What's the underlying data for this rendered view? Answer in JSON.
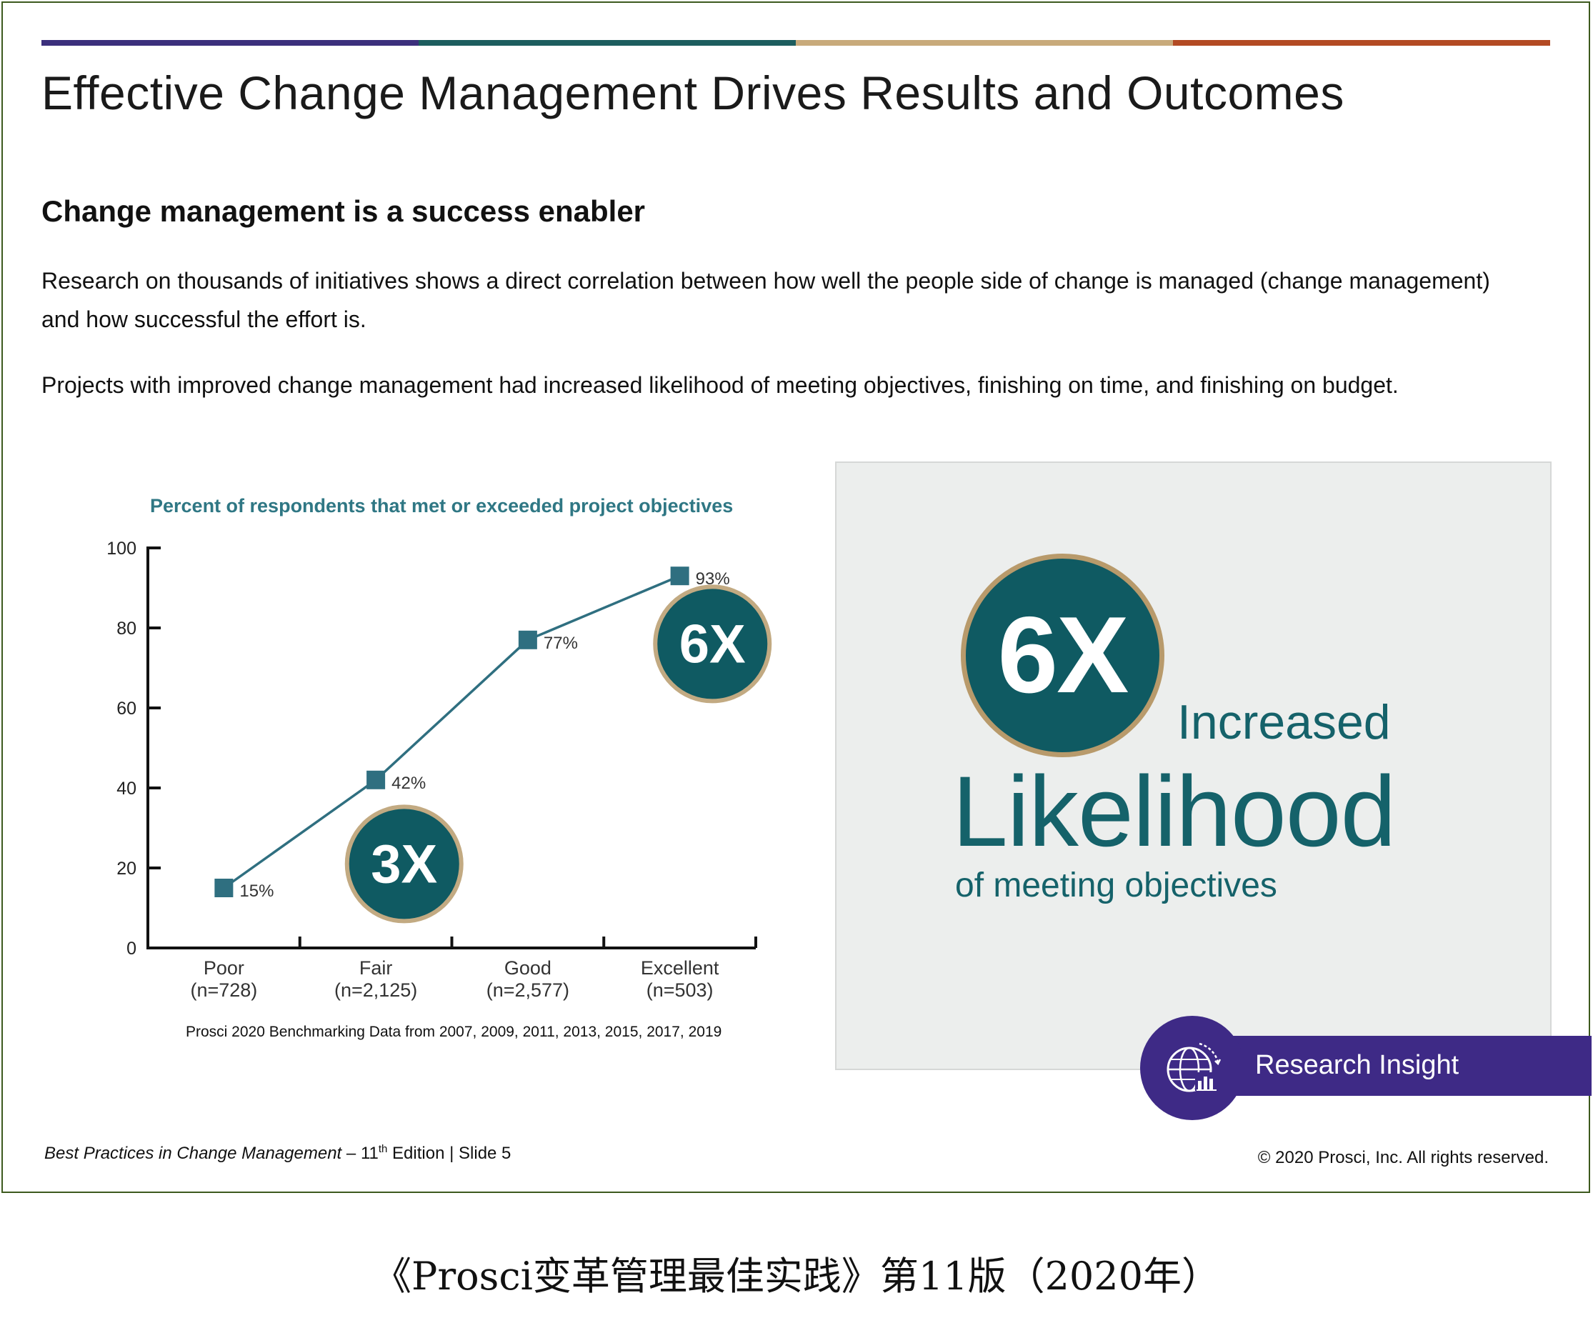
{
  "slide": {
    "title": "Effective Change Management Drives Results and Outcomes",
    "section_heading": "Change management is a success enabler",
    "paragraph1": "Research on thousands of initiatives shows a direct correlation between how well the people side of change is managed (change management) and how successful the effort is.",
    "paragraph2": "Projects with improved change management had increased likelihood of meeting objectives, finishing on time, and finishing on budget.",
    "top_bar_colors": [
      "#3b2f7c",
      "#1c5d5e",
      "#c8aa7b",
      "#b34a23"
    ]
  },
  "chart_data": {
    "type": "line",
    "title": "Percent of respondents that met or exceeded project objectives",
    "categories": [
      "Poor",
      "Fair",
      "Good",
      "Excellent"
    ],
    "category_counts": [
      "(n=728)",
      "(n=2,125)",
      "(n=2,577)",
      "(n=503)"
    ],
    "series": [
      {
        "values": [
          15,
          42,
          77,
          93
        ],
        "labels": [
          "15%",
          "42%",
          "77%",
          "93%"
        ],
        "color": "#2f6f80"
      }
    ],
    "ylim": [
      0,
      100
    ],
    "yticks": [
      0,
      20,
      40,
      60,
      80,
      100
    ],
    "xlabel": "",
    "ylabel": "",
    "grid": false,
    "annotations": [
      {
        "text": "3X",
        "between": [
          "Poor",
          "Fair"
        ]
      },
      {
        "text": "6X",
        "between": [
          "Good",
          "Excellent"
        ]
      }
    ],
    "source": "Prosci 2020 Benchmarking Data from 2007, 2009, 2011, 2013, 2015, 2017, 2019"
  },
  "insight": {
    "multiplier": "6X",
    "line1": "Increased",
    "line2": "Likelihood",
    "line3": "of meeting objectives",
    "circle_color": "#0f5a62",
    "ring_color": "#b89a6b",
    "text_color": "#15626a",
    "badge_label": "Research Insight",
    "badge_color": "#3e2a86",
    "badge_icon": "globe-chart-icon"
  },
  "footer": {
    "publication": "Best Practices in Change Management",
    "dash": "–",
    "edition_num": "11",
    "edition_sup": "th",
    "edition_word": "Edition",
    "separator": "|",
    "slide": "Slide 5",
    "copyright": "© 2020 Prosci, Inc. All rights reserved."
  },
  "caption": "《Prosci变革管理最佳实践》第11版（2020年）"
}
